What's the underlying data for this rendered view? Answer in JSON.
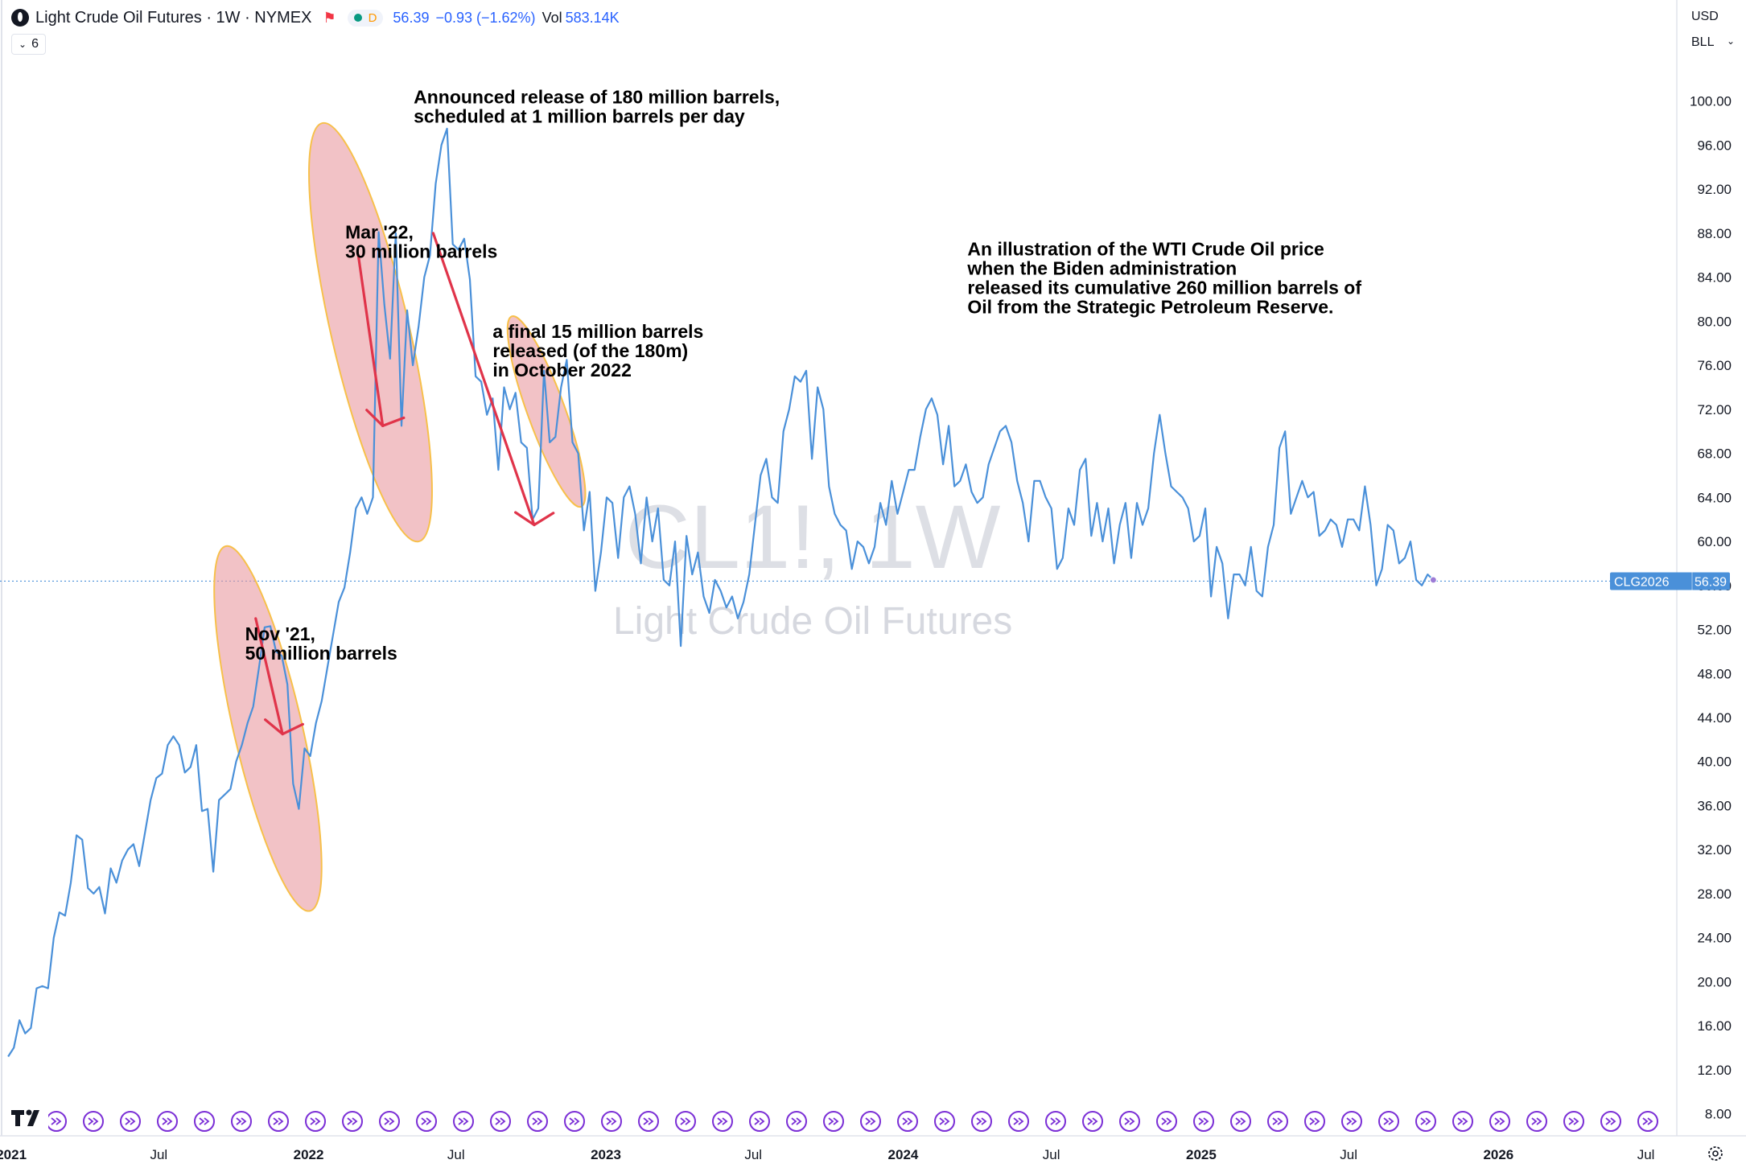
{
  "header": {
    "symbol_name": "Light Crude Oil Futures · 1W · NYMEX",
    "flag_icon": "flag-icon",
    "data_tag": "D",
    "last": "56.39",
    "change": "−0.93 (−1.62%)",
    "vol_label": "Vol",
    "vol_value": "583.14K",
    "indicators_count": "6",
    "currency": "USD",
    "unit": "BLL",
    "up_color": "#089981",
    "line_color": "#4a90d9"
  },
  "chart_data": {
    "type": "line",
    "title": "Light Crude Oil Futures",
    "watermark_symbol": "CL1!, 1W",
    "watermark_name": "Light Crude Oil Futures",
    "series": [
      {
        "name": "CL1!",
        "dates_range": [
          "2020-12-28",
          "2025-12-29"
        ],
        "frequency": "weekly",
        "values": [
          13.2,
          14.0,
          16.5,
          15.3,
          15.8,
          19.4,
          19.6,
          19.4,
          24.0,
          26.3,
          26.0,
          29.0,
          33.3,
          32.9,
          28.5,
          28.0,
          28.6,
          26.2,
          30.3,
          29.0,
          31.0,
          32.0,
          32.5,
          30.5,
          33.5,
          36.5,
          38.5,
          38.9,
          41.5,
          42.3,
          41.5,
          39.0,
          39.5,
          41.5,
          35.5,
          35.7,
          30.0,
          36.5,
          37.0,
          37.5,
          40.0,
          41.5,
          43.5,
          45.0,
          48.5,
          52.2,
          52.3,
          50.0,
          49.6,
          47.0,
          38.0,
          35.7,
          41.2,
          40.5,
          43.5,
          45.5,
          48.5,
          51.5,
          54.5,
          55.8,
          59.0,
          63.0,
          64.0,
          62.5,
          64.0,
          88.1,
          81.5,
          76.6,
          88.0,
          70.5,
          81.0,
          76.0,
          79.5,
          84.0,
          86.0,
          92.5,
          96.0,
          97.5,
          87.0,
          86.5,
          87.5,
          83.8,
          75.0,
          74.5,
          71.5,
          73.0,
          66.5,
          74.0,
          72.0,
          73.5,
          69.0,
          68.5,
          62.0,
          63.0,
          75.5,
          69.0,
          69.5,
          74.0,
          76.5,
          69.0,
          68.0,
          61.0,
          64.5,
          55.5,
          59.0,
          64.0,
          63.5,
          58.5,
          64.0,
          65.0,
          62.5,
          58.0,
          64.0,
          60.0,
          63.0,
          56.5,
          56.0,
          60.0,
          50.5,
          60.5,
          57.0,
          59.0,
          55.0,
          53.5,
          56.5,
          55.5,
          54.0,
          55.0,
          53.0,
          54.5,
          57.0,
          61.5,
          66.0,
          67.5,
          64.0,
          63.5,
          70.0,
          72.0,
          75.0,
          74.5,
          75.5,
          67.5,
          74.0,
          72.0,
          65.0,
          62.5,
          61.5,
          61.0,
          57.5,
          60.0,
          59.5,
          58.0,
          59.5,
          63.5,
          61.5,
          65.5,
          62.5,
          64.5,
          66.5,
          66.5,
          69.5,
          72.0,
          73.0,
          71.5,
          67.0,
          70.5,
          65.0,
          65.5,
          67.0,
          64.5,
          63.5,
          64.0,
          67.0,
          68.5,
          70.0,
          70.5,
          69.0,
          65.5,
          63.5,
          60.0,
          65.5,
          65.5,
          64.0,
          63.0,
          57.5,
          58.5,
          63.0,
          61.5,
          66.5,
          67.5,
          60.5,
          63.5,
          60.0,
          63.0,
          58.0,
          61.5,
          63.5,
          58.5,
          63.5,
          61.5,
          63.0,
          68.0,
          71.5,
          68.0,
          65.0,
          64.5,
          64.0,
          63.0,
          60.0,
          60.5,
          63.0,
          55.0,
          59.5,
          58.0,
          53.0,
          57.0,
          57.0,
          56.0,
          59.5,
          55.5,
          55.0,
          59.5,
          61.5,
          68.5,
          70.0,
          62.5,
          64.0,
          65.5,
          64.0,
          64.5,
          60.5,
          61.0,
          62.0,
          61.5,
          59.5,
          62.0,
          62.0,
          61.0,
          65.0,
          61.5,
          56.0,
          57.5,
          61.5,
          61.0,
          58.0,
          58.5,
          60.0,
          56.5,
          56.0,
          57.0,
          56.5
        ]
      }
    ],
    "last_value": 56.39,
    "last_label": "CLG2026",
    "x_ticks": [
      {
        "label": "2021",
        "date": "2021-01-01",
        "bold": true
      },
      {
        "label": "Jul",
        "date": "2021-07-01",
        "bold": false
      },
      {
        "label": "2022",
        "date": "2022-01-01",
        "bold": true
      },
      {
        "label": "Jul",
        "date": "2022-07-01",
        "bold": false
      },
      {
        "label": "2023",
        "date": "2023-01-01",
        "bold": true
      },
      {
        "label": "Jul",
        "date": "2023-07-01",
        "bold": false
      },
      {
        "label": "2024",
        "date": "2024-01-01",
        "bold": true
      },
      {
        "label": "Jul",
        "date": "2024-07-01",
        "bold": false
      },
      {
        "label": "2025",
        "date": "2025-01-01",
        "bold": true
      },
      {
        "label": "Jul",
        "date": "2025-07-01",
        "bold": false
      },
      {
        "label": "2026",
        "date": "2026-01-01",
        "bold": true
      },
      {
        "label": "Jul",
        "date": "2026-07-01",
        "bold": false
      }
    ],
    "y_ticks": [
      "100.00",
      "96.00",
      "92.00",
      "88.00",
      "84.00",
      "80.00",
      "76.00",
      "72.00",
      "68.00",
      "64.00",
      "60.00",
      "56.00",
      "52.00",
      "48.00",
      "44.00",
      "40.00",
      "36.00",
      "32.00",
      "28.00",
      "24.00",
      "20.00",
      "16.00",
      "12.00",
      "8.00"
    ],
    "y_range": [
      6.0,
      104.8
    ],
    "x_range": [
      "2020-12-22",
      "2026-08-06"
    ],
    "annotations": [
      {
        "id": "nov21",
        "lines": [
          "Nov '21,",
          "50 million barrels"
        ],
        "date": "2021-10-15",
        "value": 51.0
      },
      {
        "id": "mar22",
        "lines": [
          "Mar '22,",
          "30 million barrels"
        ],
        "date": "2022-02-15",
        "value": 87.5
      },
      {
        "id": "announced",
        "lines": [
          "Announced release of 180 million barrels,",
          "scheduled at 1 million barrels per day"
        ],
        "date": "2022-05-10",
        "value": 99.8
      },
      {
        "id": "final15",
        "lines": [
          "a final 15 million barrels",
          "released (of the 180m)",
          "in October 2022"
        ],
        "date": "2022-08-15",
        "value": 78.5
      },
      {
        "id": "summary",
        "lines": [
          "An illustration of the WTI Crude Oil price",
          "when the Biden administration",
          "released its cumulative 260 million barrels of",
          "Oil from the Strategic Petroleum Reserve."
        ],
        "date": "2024-03-20",
        "value": 86.0
      }
    ],
    "highlight_ellipses": [
      {
        "name": "nov21-ellipse",
        "center_date": "2021-11-12",
        "center_value": 43.0,
        "span_days": 42,
        "span_value": 17.0,
        "tilt": -13
      },
      {
        "name": "mar22-ellipse",
        "center_date": "2022-03-18",
        "center_value": 79.0,
        "span_days": 48,
        "span_value": 19.5,
        "tilt": -13
      },
      {
        "name": "oct22-ellipse",
        "center_date": "2022-10-20",
        "center_value": 71.8,
        "span_days": 23,
        "span_value": 9.2,
        "tilt": -20
      }
    ],
    "arrows": [
      {
        "name": "nov21-arrow",
        "from_date": "2021-10-28",
        "from_value": 53.0,
        "to_date": "2021-11-30",
        "to_value": 42.5
      },
      {
        "name": "mar22-arrow",
        "from_date": "2022-03-03",
        "from_value": 86.0,
        "to_date": "2022-04-02",
        "to_value": 70.5
      },
      {
        "name": "jun22-arrow",
        "from_date": "2022-06-03",
        "from_value": 88.0,
        "to_date": "2022-10-05",
        "to_value": 61.5
      }
    ],
    "bottom_event_marks": 45
  }
}
